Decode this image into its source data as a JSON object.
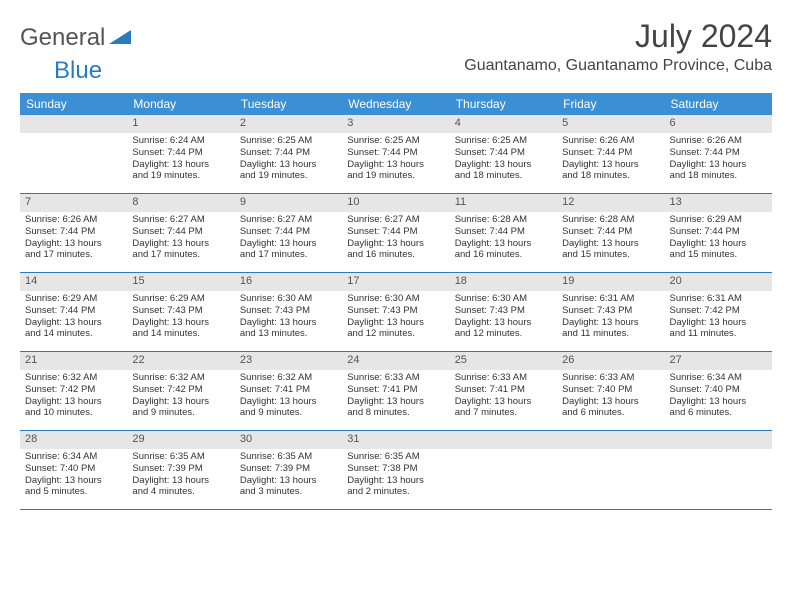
{
  "brand": {
    "text1": "General",
    "text2": "Blue"
  },
  "title": "July 2024",
  "location": "Guantanamo, Guantanamo Province, Cuba",
  "colors": {
    "header_bg": "#3b8fd4",
    "header_text": "#ffffff",
    "daynum_bg": "#e6e6e6",
    "week_divider": "#2b7bbf",
    "brand_gray": "#555555",
    "brand_blue": "#2b7bbf"
  },
  "weekdays": [
    "Sunday",
    "Monday",
    "Tuesday",
    "Wednesday",
    "Thursday",
    "Friday",
    "Saturday"
  ],
  "start_offset": 1,
  "days": [
    {
      "n": "1",
      "sr": "Sunrise: 6:24 AM",
      "ss": "Sunset: 7:44 PM",
      "d1": "Daylight: 13 hours",
      "d2": "and 19 minutes."
    },
    {
      "n": "2",
      "sr": "Sunrise: 6:25 AM",
      "ss": "Sunset: 7:44 PM",
      "d1": "Daylight: 13 hours",
      "d2": "and 19 minutes."
    },
    {
      "n": "3",
      "sr": "Sunrise: 6:25 AM",
      "ss": "Sunset: 7:44 PM",
      "d1": "Daylight: 13 hours",
      "d2": "and 19 minutes."
    },
    {
      "n": "4",
      "sr": "Sunrise: 6:25 AM",
      "ss": "Sunset: 7:44 PM",
      "d1": "Daylight: 13 hours",
      "d2": "and 18 minutes."
    },
    {
      "n": "5",
      "sr": "Sunrise: 6:26 AM",
      "ss": "Sunset: 7:44 PM",
      "d1": "Daylight: 13 hours",
      "d2": "and 18 minutes."
    },
    {
      "n": "6",
      "sr": "Sunrise: 6:26 AM",
      "ss": "Sunset: 7:44 PM",
      "d1": "Daylight: 13 hours",
      "d2": "and 18 minutes."
    },
    {
      "n": "7",
      "sr": "Sunrise: 6:26 AM",
      "ss": "Sunset: 7:44 PM",
      "d1": "Daylight: 13 hours",
      "d2": "and 17 minutes."
    },
    {
      "n": "8",
      "sr": "Sunrise: 6:27 AM",
      "ss": "Sunset: 7:44 PM",
      "d1": "Daylight: 13 hours",
      "d2": "and 17 minutes."
    },
    {
      "n": "9",
      "sr": "Sunrise: 6:27 AM",
      "ss": "Sunset: 7:44 PM",
      "d1": "Daylight: 13 hours",
      "d2": "and 17 minutes."
    },
    {
      "n": "10",
      "sr": "Sunrise: 6:27 AM",
      "ss": "Sunset: 7:44 PM",
      "d1": "Daylight: 13 hours",
      "d2": "and 16 minutes."
    },
    {
      "n": "11",
      "sr": "Sunrise: 6:28 AM",
      "ss": "Sunset: 7:44 PM",
      "d1": "Daylight: 13 hours",
      "d2": "and 16 minutes."
    },
    {
      "n": "12",
      "sr": "Sunrise: 6:28 AM",
      "ss": "Sunset: 7:44 PM",
      "d1": "Daylight: 13 hours",
      "d2": "and 15 minutes."
    },
    {
      "n": "13",
      "sr": "Sunrise: 6:29 AM",
      "ss": "Sunset: 7:44 PM",
      "d1": "Daylight: 13 hours",
      "d2": "and 15 minutes."
    },
    {
      "n": "14",
      "sr": "Sunrise: 6:29 AM",
      "ss": "Sunset: 7:44 PM",
      "d1": "Daylight: 13 hours",
      "d2": "and 14 minutes."
    },
    {
      "n": "15",
      "sr": "Sunrise: 6:29 AM",
      "ss": "Sunset: 7:43 PM",
      "d1": "Daylight: 13 hours",
      "d2": "and 14 minutes."
    },
    {
      "n": "16",
      "sr": "Sunrise: 6:30 AM",
      "ss": "Sunset: 7:43 PM",
      "d1": "Daylight: 13 hours",
      "d2": "and 13 minutes."
    },
    {
      "n": "17",
      "sr": "Sunrise: 6:30 AM",
      "ss": "Sunset: 7:43 PM",
      "d1": "Daylight: 13 hours",
      "d2": "and 12 minutes."
    },
    {
      "n": "18",
      "sr": "Sunrise: 6:30 AM",
      "ss": "Sunset: 7:43 PM",
      "d1": "Daylight: 13 hours",
      "d2": "and 12 minutes."
    },
    {
      "n": "19",
      "sr": "Sunrise: 6:31 AM",
      "ss": "Sunset: 7:43 PM",
      "d1": "Daylight: 13 hours",
      "d2": "and 11 minutes."
    },
    {
      "n": "20",
      "sr": "Sunrise: 6:31 AM",
      "ss": "Sunset: 7:42 PM",
      "d1": "Daylight: 13 hours",
      "d2": "and 11 minutes."
    },
    {
      "n": "21",
      "sr": "Sunrise: 6:32 AM",
      "ss": "Sunset: 7:42 PM",
      "d1": "Daylight: 13 hours",
      "d2": "and 10 minutes."
    },
    {
      "n": "22",
      "sr": "Sunrise: 6:32 AM",
      "ss": "Sunset: 7:42 PM",
      "d1": "Daylight: 13 hours",
      "d2": "and 9 minutes."
    },
    {
      "n": "23",
      "sr": "Sunrise: 6:32 AM",
      "ss": "Sunset: 7:41 PM",
      "d1": "Daylight: 13 hours",
      "d2": "and 9 minutes."
    },
    {
      "n": "24",
      "sr": "Sunrise: 6:33 AM",
      "ss": "Sunset: 7:41 PM",
      "d1": "Daylight: 13 hours",
      "d2": "and 8 minutes."
    },
    {
      "n": "25",
      "sr": "Sunrise: 6:33 AM",
      "ss": "Sunset: 7:41 PM",
      "d1": "Daylight: 13 hours",
      "d2": "and 7 minutes."
    },
    {
      "n": "26",
      "sr": "Sunrise: 6:33 AM",
      "ss": "Sunset: 7:40 PM",
      "d1": "Daylight: 13 hours",
      "d2": "and 6 minutes."
    },
    {
      "n": "27",
      "sr": "Sunrise: 6:34 AM",
      "ss": "Sunset: 7:40 PM",
      "d1": "Daylight: 13 hours",
      "d2": "and 6 minutes."
    },
    {
      "n": "28",
      "sr": "Sunrise: 6:34 AM",
      "ss": "Sunset: 7:40 PM",
      "d1": "Daylight: 13 hours",
      "d2": "and 5 minutes."
    },
    {
      "n": "29",
      "sr": "Sunrise: 6:35 AM",
      "ss": "Sunset: 7:39 PM",
      "d1": "Daylight: 13 hours",
      "d2": "and 4 minutes."
    },
    {
      "n": "30",
      "sr": "Sunrise: 6:35 AM",
      "ss": "Sunset: 7:39 PM",
      "d1": "Daylight: 13 hours",
      "d2": "and 3 minutes."
    },
    {
      "n": "31",
      "sr": "Sunrise: 6:35 AM",
      "ss": "Sunset: 7:38 PM",
      "d1": "Daylight: 13 hours",
      "d2": "and 2 minutes."
    }
  ]
}
